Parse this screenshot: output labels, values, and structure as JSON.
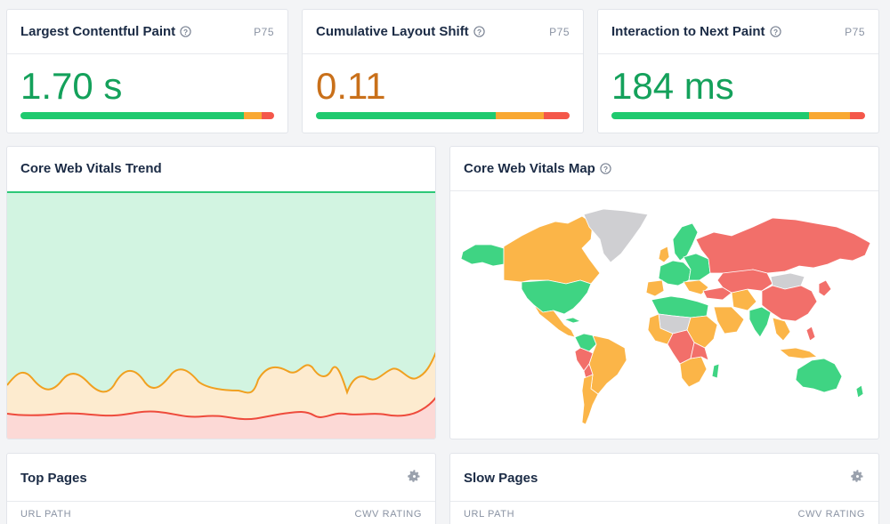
{
  "colors": {
    "good": "#1fca6f",
    "needs_improvement": "#f9a832",
    "poor": "#f4574a"
  },
  "metrics": [
    {
      "title": "Largest Contentful Paint",
      "percentile": "P75",
      "value": "1.70 s",
      "value_color": "#14a15b",
      "dist": [
        0.88,
        0.07,
        0.05
      ]
    },
    {
      "title": "Cumulative Layout Shift",
      "percentile": "P75",
      "value": "0.11",
      "value_color": "#c9701a",
      "dist": [
        0.71,
        0.19,
        0.1
      ]
    },
    {
      "title": "Interaction to Next Paint",
      "percentile": "P75",
      "value": "184 ms",
      "value_color": "#14a15b",
      "dist": [
        0.78,
        0.16,
        0.06
      ]
    }
  ],
  "trend": {
    "title": "Core Web Vitals Trend"
  },
  "map": {
    "title": "Core Web Vitals Map"
  },
  "top_pages": {
    "title": "Top Pages",
    "col_left": "URL PATH",
    "col_right": "CWV RATING"
  },
  "slow_pages": {
    "title": "Slow Pages",
    "col_left": "URL PATH",
    "col_right": "CWV RATING"
  }
}
